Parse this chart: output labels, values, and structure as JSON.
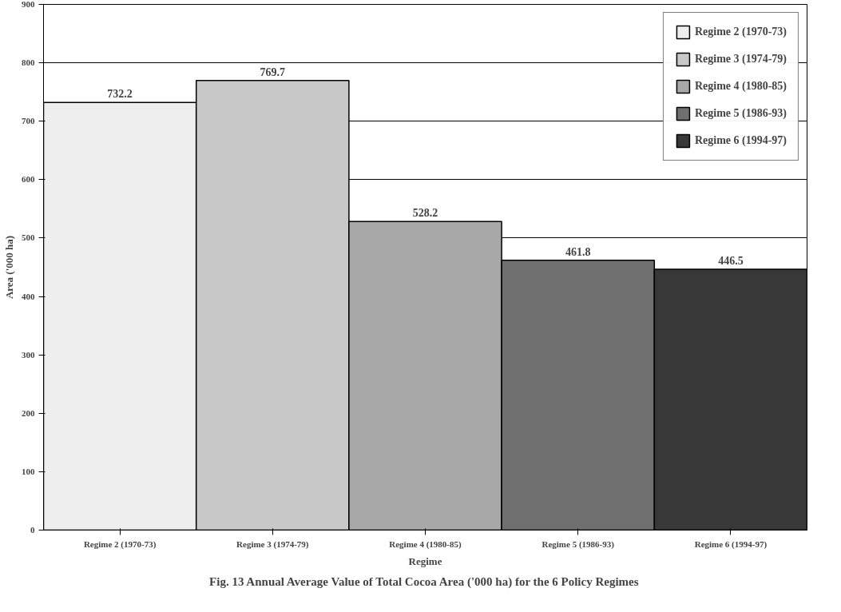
{
  "chart_data": {
    "type": "bar",
    "title": "Fig. 13 Annual Average Value of Total Cocoa Area ('000 ha) for the 6 Policy Regimes",
    "xlabel": "Regime",
    "ylabel": "Area ('000 ha)",
    "categories": [
      "Regime 2 (1970-73)",
      "Regime 3 (1974-79)",
      "Regime 4 (1980-85)",
      "Regime 5 (1986-93)",
      "Regime 6 (1994-97)"
    ],
    "series": [
      {
        "name": "Regime 2 (1970-73)",
        "color": "#eeeeee",
        "values": [
          732.2,
          null,
          null,
          null,
          null
        ]
      },
      {
        "name": "Regime 3 (1974-79)",
        "color": "#c8c8c8",
        "values": [
          null,
          769.7,
          null,
          null,
          null
        ]
      },
      {
        "name": "Regime 4 (1980-85)",
        "color": "#a8a8a8",
        "values": [
          null,
          null,
          528.2,
          null,
          null
        ]
      },
      {
        "name": "Regime 5 (1986-93)",
        "color": "#707070",
        "values": [
          null,
          null,
          null,
          461.8,
          null
        ]
      },
      {
        "name": "Regime 6 (1994-97)",
        "color": "#383838",
        "values": [
          null,
          null,
          null,
          null,
          446.5
        ]
      }
    ],
    "ylim": [
      0,
      900
    ],
    "yticks": [
      0,
      100,
      200,
      300,
      400,
      500,
      600,
      700,
      800,
      900
    ],
    "grid": "y",
    "legend": "top right",
    "data_labels": true
  }
}
